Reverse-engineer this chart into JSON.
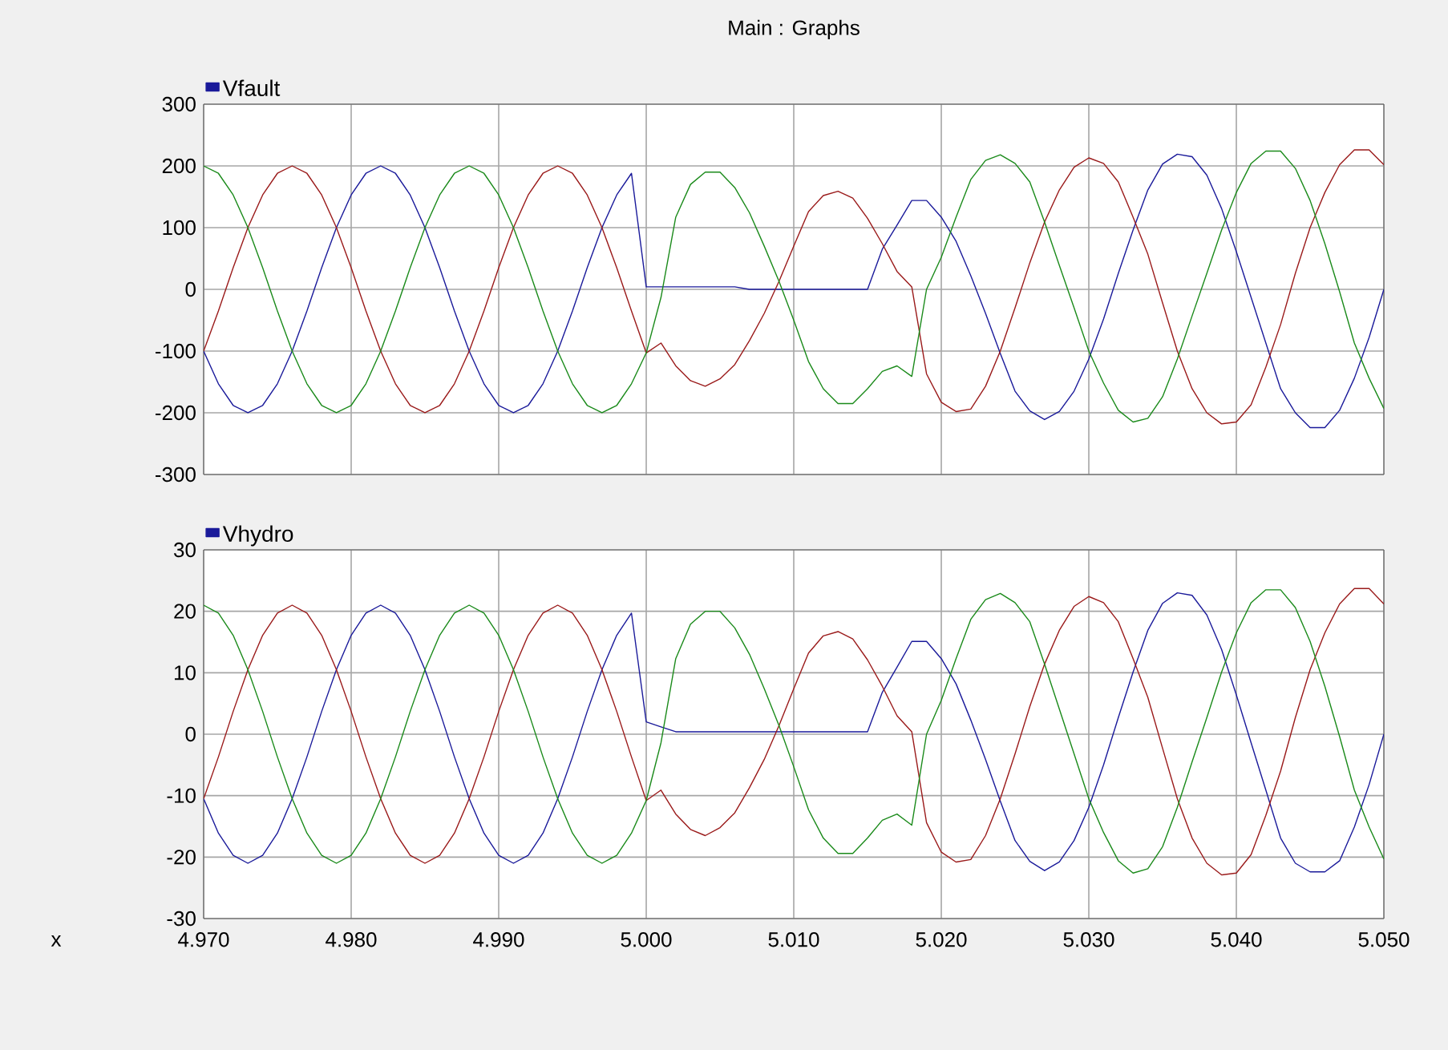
{
  "chart_data": [
    {
      "type": "line",
      "title": "Main : Graphs",
      "legend": "top left",
      "grid": true,
      "tick_labels": "y",
      "x": [
        4.97,
        4.971,
        4.972,
        4.973,
        4.974,
        4.975,
        4.976,
        4.977,
        4.978,
        4.979,
        4.98,
        4.981,
        4.982,
        4.983,
        4.984,
        4.985,
        4.986,
        4.987,
        4.988,
        4.989,
        4.99,
        4.991,
        4.992,
        4.993,
        4.994,
        4.995,
        4.996,
        4.997,
        4.998,
        4.999,
        5.0,
        5.001,
        5.002,
        5.003,
        5.004,
        5.005,
        5.006,
        5.007,
        5.008,
        5.009,
        5.01,
        5.011,
        5.012,
        5.013,
        5.014,
        5.015,
        5.016,
        5.017,
        5.018,
        5.019,
        5.02,
        5.021,
        5.022,
        5.023,
        5.024,
        5.025,
        5.026,
        5.027,
        5.028,
        5.029,
        5.03,
        5.031,
        5.032,
        5.033,
        5.034,
        5.035,
        5.036,
        5.037,
        5.038,
        5.039,
        5.04,
        5.041,
        5.042,
        5.043,
        5.044,
        5.045,
        5.046,
        5.047,
        5.048,
        5.049,
        5.05
      ],
      "xlim": [
        4.97,
        5.05
      ],
      "xticks": [
        {
          "value": 4.97,
          "label": null
        },
        {
          "value": 4.98,
          "label": null
        },
        {
          "value": 4.99,
          "label": null
        },
        {
          "value": 5.0,
          "label": null
        },
        {
          "value": 5.01,
          "label": null
        },
        {
          "value": 5.02,
          "label": null
        },
        {
          "value": 5.03,
          "label": null
        },
        {
          "value": 5.04,
          "label": null
        },
        {
          "value": 5.05,
          "label": null
        }
      ],
      "ylim": [
        -300,
        300
      ],
      "yticks": [
        -300,
        -200,
        -100,
        0,
        100,
        200,
        300
      ],
      "series": [
        {
          "name": "Vfault",
          "color": "#1a1a9a",
          "values": [
            -100,
            -153,
            -188,
            -200,
            -188,
            -153,
            -100,
            -35,
            35,
            100,
            153,
            188,
            200,
            188,
            153,
            100,
            35,
            -35,
            -100,
            -153,
            -188,
            -200,
            -188,
            -153,
            -100,
            -35,
            35,
            100,
            153,
            188,
            4,
            4,
            4,
            4,
            4,
            4,
            4,
            0,
            0,
            0,
            0,
            0,
            0,
            0,
            0,
            0,
            65,
            104,
            144,
            144,
            117,
            78,
            22,
            -39,
            -104,
            -165,
            -197,
            -211,
            -198,
            -165,
            -113,
            -48,
            26,
            96,
            161,
            203,
            219,
            215,
            185,
            131,
            61,
            -13,
            -87,
            -161,
            -200,
            -224,
            -224,
            -196,
            -144,
            -78,
            0
          ]
        },
        {
          "color": "#9a1a1a",
          "values": [
            -100,
            -35,
            35,
            100,
            153,
            188,
            200,
            188,
            153,
            100,
            35,
            -35,
            -100,
            -153,
            -188,
            -200,
            -188,
            -153,
            -100,
            -35,
            35,
            100,
            153,
            188,
            200,
            188,
            153,
            100,
            35,
            -35,
            -103,
            -87,
            -124,
            -148,
            -157,
            -145,
            -122,
            -83,
            -39,
            13,
            70,
            126,
            152,
            159,
            148,
            115,
            74,
            29,
            4,
            -137,
            -183,
            -198,
            -194,
            -157,
            -100,
            -30,
            43,
            109,
            161,
            198,
            213,
            204,
            174,
            117,
            57,
            -22,
            -100,
            -161,
            -200,
            -218,
            -215,
            -187,
            -126,
            -57,
            26,
            100,
            157,
            202,
            226,
            226,
            202
          ]
        },
        {
          "color": "#1a8a1a",
          "values": [
            200,
            188,
            153,
            100,
            35,
            -35,
            -100,
            -153,
            -188,
            -200,
            -188,
            -153,
            -100,
            -35,
            35,
            100,
            153,
            188,
            200,
            188,
            153,
            100,
            35,
            -35,
            -100,
            -153,
            -188,
            -200,
            -188,
            -153,
            -103,
            -13,
            117,
            170,
            190,
            190,
            165,
            124,
            70,
            13,
            -50,
            -117,
            -161,
            -185,
            -185,
            -161,
            -133,
            -124,
            -141,
            0,
            52,
            117,
            178,
            209,
            218,
            204,
            174,
            109,
            39,
            -30,
            -100,
            -152,
            -196,
            -215,
            -209,
            -174,
            -113,
            -43,
            26,
            96,
            157,
            204,
            224,
            224,
            196,
            144,
            74,
            -4,
            -87,
            -144,
            -193
          ]
        }
      ]
    },
    {
      "type": "line",
      "legend": "top left",
      "grid": true,
      "xlabel": "x",
      "x": [
        4.97,
        4.971,
        4.972,
        4.973,
        4.974,
        4.975,
        4.976,
        4.977,
        4.978,
        4.979,
        4.98,
        4.981,
        4.982,
        4.983,
        4.984,
        4.985,
        4.986,
        4.987,
        4.988,
        4.989,
        4.99,
        4.991,
        4.992,
        4.993,
        4.994,
        4.995,
        4.996,
        4.997,
        4.998,
        4.999,
        5.0,
        5.001,
        5.002,
        5.003,
        5.004,
        5.005,
        5.006,
        5.007,
        5.008,
        5.009,
        5.01,
        5.011,
        5.012,
        5.013,
        5.014,
        5.015,
        5.016,
        5.017,
        5.018,
        5.019,
        5.02,
        5.021,
        5.022,
        5.023,
        5.024,
        5.025,
        5.026,
        5.027,
        5.028,
        5.029,
        5.03,
        5.031,
        5.032,
        5.033,
        5.034,
        5.035,
        5.036,
        5.037,
        5.038,
        5.039,
        5.04,
        5.041,
        5.042,
        5.043,
        5.044,
        5.045,
        5.046,
        5.047,
        5.048,
        5.049,
        5.05
      ],
      "xlim": [
        4.97,
        5.05
      ],
      "xticks": [
        {
          "value": 4.97,
          "label": "4.970"
        },
        {
          "value": 4.98,
          "label": "4.980"
        },
        {
          "value": 4.99,
          "label": "4.990"
        },
        {
          "value": 5.0,
          "label": "5.000"
        },
        {
          "value": 5.01,
          "label": "5.010"
        },
        {
          "value": 5.02,
          "label": "5.020"
        },
        {
          "value": 5.03,
          "label": "5.030"
        },
        {
          "value": 5.04,
          "label": "5.040"
        },
        {
          "value": 5.05,
          "label": "5.050"
        }
      ],
      "ylim": [
        -30,
        30
      ],
      "yticks": [
        -30,
        -20,
        -10,
        0,
        10,
        20,
        30
      ],
      "series": [
        {
          "name": "Vhydro",
          "color": "#1a1a9a",
          "values": [
            -10.5,
            -16.1,
            -19.7,
            -21,
            -19.7,
            -16.1,
            -10.5,
            -3.7,
            3.7,
            10.5,
            16.1,
            19.7,
            21,
            19.7,
            16.1,
            10.5,
            3.7,
            -3.7,
            -10.5,
            -16.1,
            -19.7,
            -21,
            -19.7,
            -16.1,
            -10.5,
            -3.7,
            3.7,
            10.5,
            16.1,
            19.7,
            2,
            1.2,
            0.4,
            0.4,
            0.4,
            0.4,
            0.4,
            0.4,
            0.4,
            0.4,
            0.4,
            0.4,
            0.4,
            0.4,
            0.4,
            0.4,
            6.8,
            10.9,
            15.1,
            15.1,
            12.3,
            8.2,
            2.3,
            -4.1,
            -10.9,
            -17.3,
            -20.7,
            -22.2,
            -20.8,
            -17.3,
            -11.9,
            -5,
            2.7,
            10.1,
            16.9,
            21.3,
            23,
            22.6,
            19.4,
            13.8,
            6.4,
            -1.4,
            -9.1,
            -16.9,
            -21,
            -22.4,
            -22.4,
            -20.6,
            -15.1,
            -8.2,
            0
          ]
        },
        {
          "color": "#9a1a1a",
          "values": [
            -10.5,
            -3.7,
            3.7,
            10.5,
            16.1,
            19.7,
            21,
            19.7,
            16.1,
            10.5,
            3.7,
            -3.7,
            -10.5,
            -16.1,
            -19.7,
            -21,
            -19.7,
            -16.1,
            -10.5,
            -3.7,
            3.7,
            10.5,
            16.1,
            19.7,
            21,
            19.7,
            16.1,
            10.5,
            3.7,
            -3.7,
            -10.8,
            -9.1,
            -13,
            -15.5,
            -16.5,
            -15.2,
            -12.8,
            -8.7,
            -4.1,
            1.4,
            7.4,
            13.2,
            16,
            16.7,
            15.5,
            12.1,
            7.8,
            3,
            0.4,
            -14.4,
            -19.2,
            -20.8,
            -20.4,
            -16.5,
            -10.5,
            -3.2,
            4.5,
            11.4,
            16.9,
            20.8,
            22.4,
            21.4,
            18.3,
            12.3,
            6,
            -2.3,
            -10.5,
            -16.9,
            -21,
            -22.9,
            -22.6,
            -19.6,
            -13.2,
            -6,
            2.7,
            10.5,
            16.5,
            21.2,
            23.7,
            23.7,
            21.2
          ]
        },
        {
          "color": "#1a8a1a",
          "values": [
            21,
            19.7,
            16.1,
            10.5,
            3.7,
            -3.7,
            -10.5,
            -16.1,
            -19.7,
            -21,
            -19.7,
            -16.1,
            -10.5,
            -3.7,
            3.7,
            10.5,
            16.1,
            19.7,
            21,
            19.7,
            16.1,
            10.5,
            3.7,
            -3.7,
            -10.5,
            -16.1,
            -19.7,
            -21,
            -19.7,
            -16.1,
            -10.8,
            -1.4,
            12.3,
            17.9,
            20,
            20,
            17.3,
            13,
            7.4,
            1.4,
            -5.3,
            -12.3,
            -16.9,
            -19.4,
            -19.4,
            -16.9,
            -14,
            -13,
            -14.8,
            0,
            5.5,
            12.3,
            18.7,
            21.9,
            22.9,
            21.4,
            18.3,
            11.4,
            4.1,
            -3.2,
            -10.5,
            -16,
            -20.6,
            -22.6,
            -21.9,
            -18.3,
            -11.9,
            -4.5,
            2.7,
            10.1,
            16.5,
            21.4,
            23.5,
            23.5,
            20.6,
            15.1,
            7.8,
            -0.4,
            -9.1,
            -15.1,
            -20.3
          ]
        }
      ]
    }
  ]
}
